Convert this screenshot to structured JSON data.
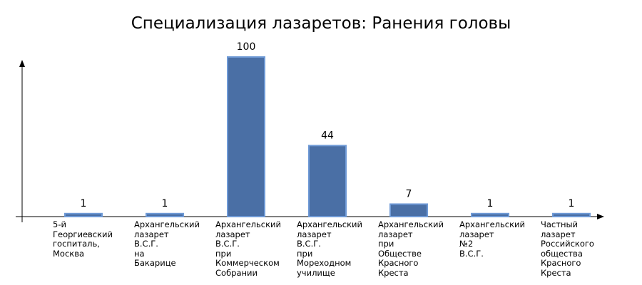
{
  "chart_data": {
    "type": "bar",
    "title": "Специализация лазаретов: Ранения головы",
    "categories": [
      "5-й Георгиевский госпиталь, Москва",
      "Архангельский лазарет В.С.Г. на Бакарице",
      "Архангельский лазарет В.С.Г. при Коммерческом Собрании",
      "Архангельский лазарет В.С.Г. при Мореходном училище",
      "Архангельский лазарет при Обществе Красного Креста",
      "Архангельский лазарет №2 В.С.Г.",
      "Частный лазарет Российского общества Красного Креста"
    ],
    "values": [
      1,
      1,
      100,
      44,
      7,
      1,
      1
    ],
    "color": "#4a6fa5",
    "ylim": [
      0,
      100
    ]
  }
}
